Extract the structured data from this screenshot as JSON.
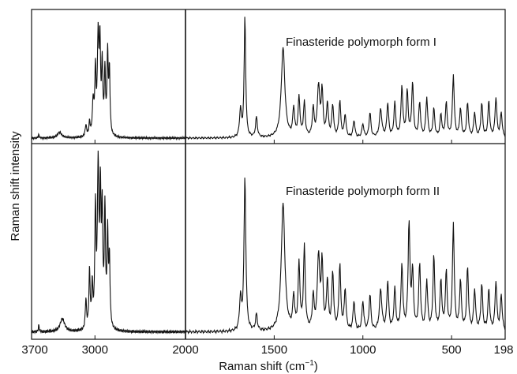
{
  "chart_data": {
    "type": "line",
    "xlabel": "Raman shift (cm",
    "xlabel_sup": "−1",
    "xlabel_close": ")",
    "ylabel": "Raman shift intensity",
    "x_reversed": true,
    "xlim": [
      3700,
      198
    ],
    "x_ticks": [
      {
        "value": 3700,
        "label": "3700"
      },
      {
        "value": 3000,
        "label": "3000"
      },
      {
        "value": 2000,
        "label": "2000"
      },
      {
        "value": 1500,
        "label": "1500"
      },
      {
        "value": 1000,
        "label": "1000"
      },
      {
        "value": 500,
        "label": "500"
      },
      {
        "value": 198,
        "label": "198"
      }
    ],
    "axis_break_at": 2000,
    "grid": false,
    "panels": [
      {
        "name": "Finasteride polymorph form I",
        "label": "Finasteride polymorph form I",
        "baseline": 0.02,
        "peaks": [
          [
            3620,
            0.03,
            6
          ],
          [
            3390,
            0.05,
            30
          ],
          [
            3100,
            0.1,
            10
          ],
          [
            3060,
            0.12,
            8
          ],
          [
            3020,
            0.3,
            10
          ],
          [
            2995,
            0.55,
            8
          ],
          [
            2965,
            0.85,
            10
          ],
          [
            2945,
            0.75,
            8
          ],
          [
            2920,
            0.6,
            8
          ],
          [
            2890,
            0.55,
            8
          ],
          [
            2860,
            0.7,
            8
          ],
          [
            2840,
            0.55,
            8
          ],
          [
            1690,
            0.25,
            6
          ],
          [
            1665,
            1.1,
            5
          ],
          [
            1600,
            0.18,
            6
          ],
          [
            1450,
            0.8,
            12
          ],
          [
            1390,
            0.25,
            6
          ],
          [
            1360,
            0.35,
            6
          ],
          [
            1330,
            0.3,
            6
          ],
          [
            1280,
            0.25,
            6
          ],
          [
            1250,
            0.45,
            8
          ],
          [
            1230,
            0.4,
            6
          ],
          [
            1200,
            0.3,
            6
          ],
          [
            1170,
            0.28,
            6
          ],
          [
            1130,
            0.32,
            6
          ],
          [
            1100,
            0.2,
            6
          ],
          [
            1050,
            0.15,
            6
          ],
          [
            1000,
            0.12,
            6
          ],
          [
            960,
            0.22,
            6
          ],
          [
            900,
            0.25,
            8
          ],
          [
            860,
            0.3,
            6
          ],
          [
            820,
            0.3,
            6
          ],
          [
            780,
            0.45,
            6
          ],
          [
            750,
            0.4,
            6
          ],
          [
            720,
            0.48,
            6
          ],
          [
            680,
            0.3,
            6
          ],
          [
            640,
            0.35,
            6
          ],
          [
            600,
            0.25,
            6
          ],
          [
            560,
            0.2,
            6
          ],
          [
            530,
            0.3,
            6
          ],
          [
            490,
            0.55,
            6
          ],
          [
            450,
            0.25,
            6
          ],
          [
            410,
            0.3,
            6
          ],
          [
            370,
            0.22,
            6
          ],
          [
            330,
            0.3,
            6
          ],
          [
            290,
            0.32,
            6
          ],
          [
            250,
            0.35,
            6
          ],
          [
            220,
            0.22,
            6
          ]
        ]
      },
      {
        "name": "Finasteride polymorph form II",
        "label": "Finasteride polymorph form II",
        "baseline": 0.02,
        "peaks": [
          [
            3620,
            0.04,
            6
          ],
          [
            3360,
            0.08,
            30
          ],
          [
            3100,
            0.18,
            8
          ],
          [
            3060,
            0.35,
            8
          ],
          [
            3030,
            0.25,
            8
          ],
          [
            2995,
            0.7,
            8
          ],
          [
            2965,
            0.95,
            10
          ],
          [
            2940,
            0.75,
            8
          ],
          [
            2920,
            0.65,
            8
          ],
          [
            2890,
            0.7,
            8
          ],
          [
            2860,
            0.55,
            8
          ],
          [
            2840,
            0.4,
            8
          ],
          [
            1690,
            0.2,
            6
          ],
          [
            1665,
            0.95,
            6
          ],
          [
            1600,
            0.1,
            6
          ],
          [
            1450,
            0.78,
            12
          ],
          [
            1390,
            0.2,
            6
          ],
          [
            1360,
            0.4,
            6
          ],
          [
            1330,
            0.5,
            6
          ],
          [
            1280,
            0.2,
            6
          ],
          [
            1250,
            0.45,
            8
          ],
          [
            1230,
            0.4,
            6
          ],
          [
            1200,
            0.3,
            6
          ],
          [
            1170,
            0.35,
            6
          ],
          [
            1130,
            0.4,
            6
          ],
          [
            1100,
            0.25,
            6
          ],
          [
            1050,
            0.18,
            6
          ],
          [
            1000,
            0.18,
            6
          ],
          [
            960,
            0.22,
            6
          ],
          [
            900,
            0.25,
            8
          ],
          [
            860,
            0.3,
            6
          ],
          [
            820,
            0.25,
            6
          ],
          [
            780,
            0.4,
            6
          ],
          [
            740,
            0.65,
            6
          ],
          [
            720,
            0.35,
            6
          ],
          [
            680,
            0.4,
            6
          ],
          [
            640,
            0.3,
            6
          ],
          [
            600,
            0.45,
            6
          ],
          [
            560,
            0.3,
            6
          ],
          [
            530,
            0.35,
            6
          ],
          [
            490,
            0.65,
            6
          ],
          [
            450,
            0.3,
            6
          ],
          [
            410,
            0.38,
            6
          ],
          [
            370,
            0.25,
            6
          ],
          [
            330,
            0.28,
            6
          ],
          [
            290,
            0.25,
            6
          ],
          [
            250,
            0.3,
            6
          ],
          [
            220,
            0.22,
            6
          ]
        ]
      }
    ]
  }
}
